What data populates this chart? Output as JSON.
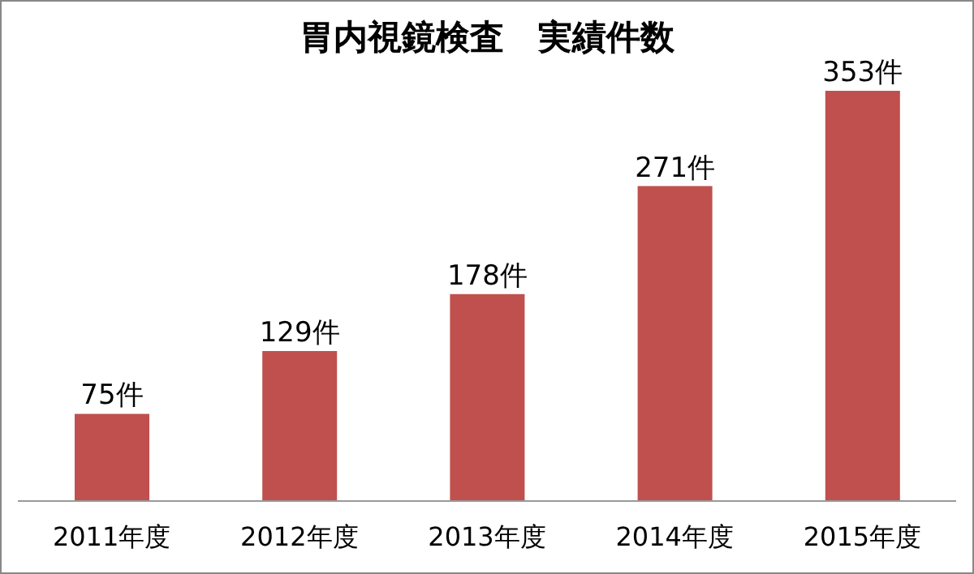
{
  "chart_data": {
    "type": "bar",
    "title": "胃内視鏡検査　実績件数",
    "categories": [
      "2011年度",
      "2012年度",
      "2013年度",
      "2014年度",
      "2015年度"
    ],
    "values": [
      75,
      129,
      178,
      271,
      353
    ],
    "color": "#c0504d",
    "value_labels": [
      "75件",
      "129件",
      "178件",
      "271件",
      "353件"
    ],
    "grid": false,
    "legend": false
  }
}
